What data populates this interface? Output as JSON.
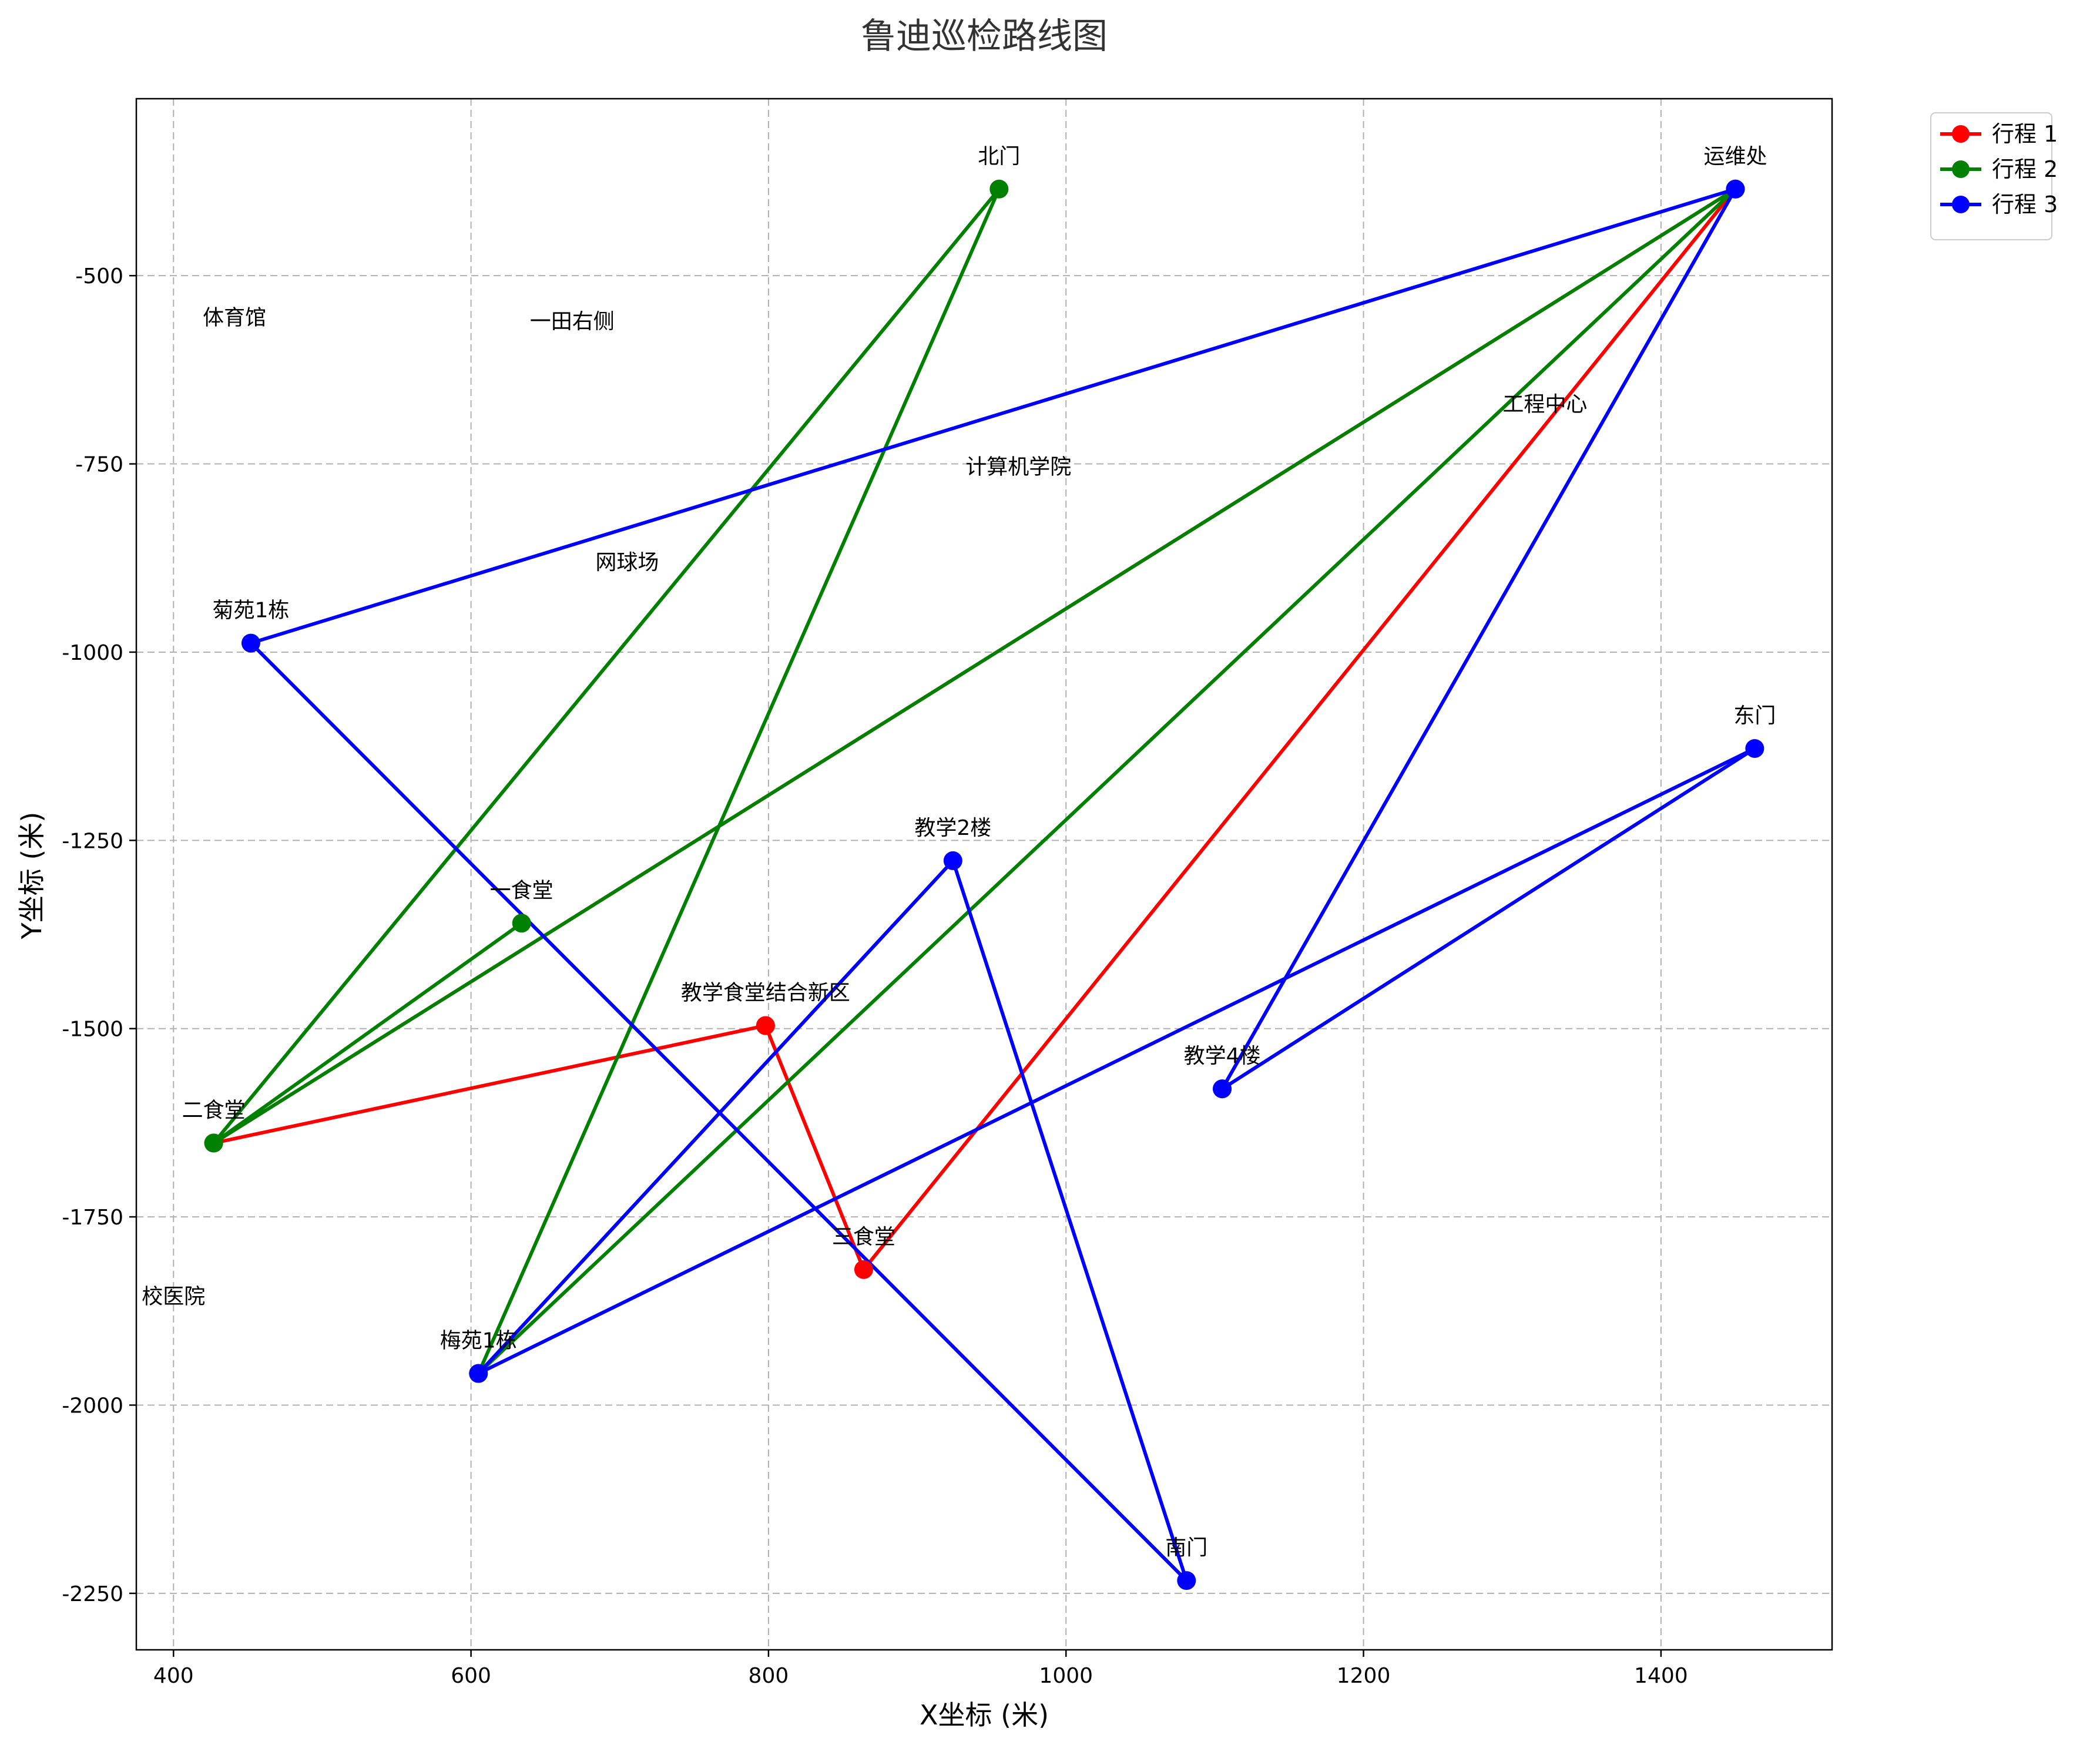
{
  "chart_data": {
    "type": "line",
    "title": "鲁迪巡检路线图",
    "xlabel": "X坐标 (米)",
    "ylabel": "Y坐标 (米)",
    "xlim": [
      375,
      1515
    ],
    "ylim": [
      -2325,
      -265
    ],
    "xticks": [
      400,
      600,
      800,
      1000,
      1200,
      1400
    ],
    "yticks": [
      -500,
      -750,
      -1000,
      -1250,
      -1500,
      -1750,
      -2000,
      -2250
    ],
    "grid": true,
    "legend_position": "outside-top-right",
    "locations": [
      {
        "name": "北门",
        "x": 955,
        "y": -385
      },
      {
        "name": "运维处",
        "x": 1450,
        "y": -385
      },
      {
        "name": "菊苑1栋",
        "x": 452,
        "y": -988
      },
      {
        "name": "东门",
        "x": 1463,
        "y": -1128
      },
      {
        "name": "教学2楼",
        "x": 924,
        "y": -1277
      },
      {
        "name": "一食堂",
        "x": 634,
        "y": -1360
      },
      {
        "name": "教学食堂结合新区",
        "x": 798,
        "y": -1496
      },
      {
        "name": "教学4楼",
        "x": 1105,
        "y": -1580
      },
      {
        "name": "二食堂",
        "x": 427,
        "y": -1652
      },
      {
        "name": "三食堂",
        "x": 864,
        "y": -1820
      },
      {
        "name": "梅苑1栋",
        "x": 605,
        "y": -1958
      },
      {
        "name": "南门",
        "x": 1081,
        "y": -2233
      }
    ],
    "annotations": [
      {
        "text": "体育馆",
        "x": 441,
        "y": -555
      },
      {
        "text": "一田右侧",
        "x": 668,
        "y": -560
      },
      {
        "text": "工程中心",
        "x": 1322,
        "y": -670
      },
      {
        "text": "计算机学院",
        "x": 968,
        "y": -753
      },
      {
        "text": "网球场",
        "x": 705,
        "y": -880
      },
      {
        "text": "校医院",
        "x": 400,
        "y": -1855
      }
    ],
    "series": [
      {
        "name": "行程 1",
        "color": "#ff0000",
        "points": [
          [
            798,
            -1496
          ],
          [
            427,
            -1652
          ],
          [
            1450,
            -385
          ],
          [
            864,
            -1820
          ],
          [
            798,
            -1496
          ]
        ]
      },
      {
        "name": "行程 2",
        "color": "#008000",
        "points": [
          [
            634,
            -1360
          ],
          [
            427,
            -1652
          ],
          [
            955,
            -385
          ],
          [
            605,
            -1958
          ],
          [
            1450,
            -385
          ],
          [
            427,
            -1652
          ]
        ]
      },
      {
        "name": "行程 3",
        "color": "#0000ff",
        "points": [
          [
            1105,
            -1580
          ],
          [
            1450,
            -385
          ],
          [
            452,
            -988
          ],
          [
            1081,
            -2233
          ],
          [
            924,
            -1277
          ],
          [
            605,
            -1958
          ],
          [
            1463,
            -1128
          ],
          [
            1105,
            -1580
          ]
        ]
      }
    ]
  }
}
